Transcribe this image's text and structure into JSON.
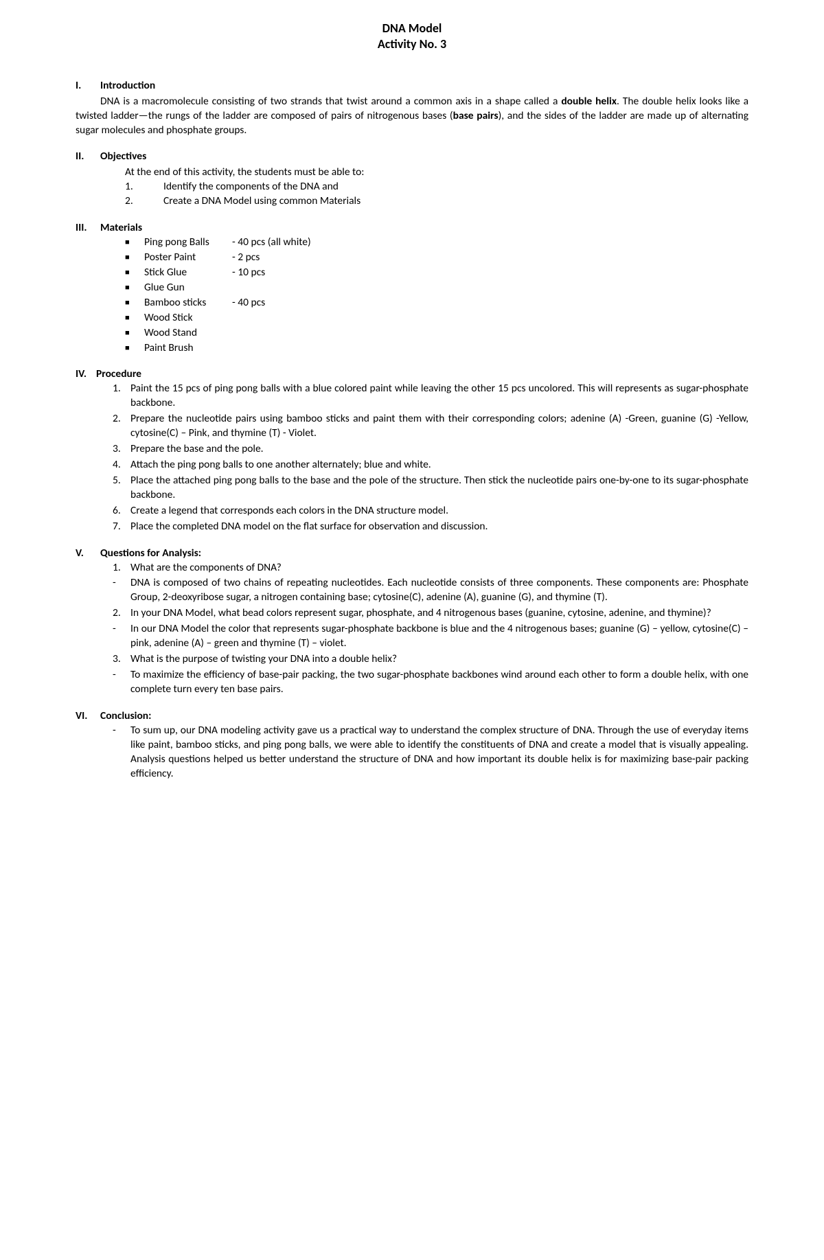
{
  "title1": "DNA Model",
  "title2": "Activity No. 3",
  "s1": {
    "roman": "I.",
    "head": "Introduction",
    "para_pre": "DNA is a macromolecule consisting of two strands that twist around a common axis in a shape called a ",
    "bold1": "double helix",
    "mid": ". The double helix looks like a twisted ladder—the rungs of the ladder are composed of pairs of nitrogenous bases (",
    "bold2": "base pairs",
    "post": "), and the sides of the ladder are made up of alternating sugar molecules and phosphate groups."
  },
  "s2": {
    "roman": "II.",
    "head": "Objectives",
    "intro": "At the end of this activity, the students must be able to:",
    "items": [
      "Identify the components of the DNA and",
      "Create a DNA Model using common Materials"
    ]
  },
  "s3": {
    "roman": "III.",
    "head": "Materials",
    "items": [
      {
        "label": "Ping pong Balls",
        "qty": "- 40 pcs (all white)"
      },
      {
        "label": "Poster Paint",
        "qty": "- 2 pcs"
      },
      {
        "label": "Stick Glue",
        "qty": "- 10 pcs"
      },
      {
        "label": "Glue Gun",
        "qty": ""
      },
      {
        "label": "Bamboo sticks",
        "qty": "- 40 pcs"
      },
      {
        "label": "Wood Stick",
        "qty": ""
      },
      {
        "label": "Wood Stand",
        "qty": ""
      },
      {
        "label": "Paint Brush",
        "qty": ""
      }
    ]
  },
  "s4": {
    "roman": "IV.",
    "head": "Procedure",
    "items": [
      "Paint the 15 pcs of ping pong balls with a blue colored paint while leaving the other 15 pcs uncolored. This will represents as sugar-phosphate backbone.",
      "Prepare the nucleotide pairs using bamboo sticks and paint them with their corresponding colors; adenine (A) -Green, guanine (G) -Yellow, cytosine(C) – Pink, and thymine (T) - Violet.",
      "Prepare the base and the pole.",
      "Attach the ping pong balls to one another alternately; blue and white.",
      "Place the attached ping pong balls to the base and the pole of the structure. Then stick the nucleotide pairs one-by-one to its sugar-phosphate backbone.",
      "Create a legend that corresponds each colors in the DNA structure model.",
      "Place the completed DNA model on the flat surface for observation and discussion."
    ]
  },
  "s5": {
    "roman": "V.",
    "head": "Questions for Analysis:",
    "qa": [
      {
        "q": "What are the components of DNA?",
        "a": "DNA is composed of two chains of repeating nucleotides. Each nucleotide consists of three components. These components are: Phosphate Group, 2-deoxyribose sugar, a nitrogen containing base; cytosine(C), adenine (A), guanine (G), and thymine (T)."
      },
      {
        "q": "In your DNA Model, what bead colors represent sugar, phosphate, and 4 nitrogenous bases (guanine, cytosine, adenine, and thymine)?",
        "a": "In our DNA Model the color that represents sugar-phosphate backbone is blue and the 4 nitrogenous bases; guanine (G) – yellow, cytosine(C) – pink, adenine (A) – green and thymine (T) – violet."
      },
      {
        "q": "What is the purpose of twisting your DNA into a double helix?",
        "a": "To maximize the efficiency of base-pair packing, the two sugar-phosphate backbones wind around each other to form a double helix, with one complete turn every ten base pairs.  "
      }
    ]
  },
  "s6": {
    "roman": "VI.",
    "head": "Conclusion:",
    "text": "To sum up, our DNA modeling activity gave us a practical way to understand the complex structure of DNA. Through the use of everyday items like paint, bamboo sticks, and ping pong balls, we were able to identify the constituents of DNA and create a model that is visually appealing. Analysis questions helped us better understand the structure of DNA and how important its double helix is for maximizing base-pair packing efficiency."
  }
}
